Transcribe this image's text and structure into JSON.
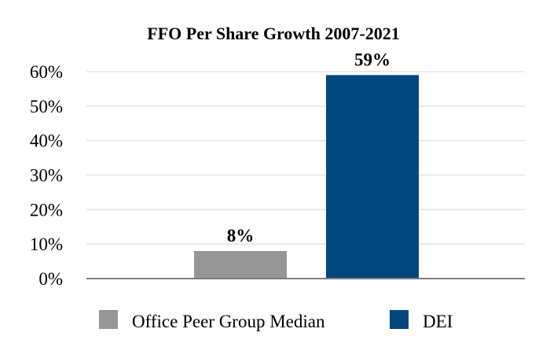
{
  "chart_data": {
    "type": "bar",
    "title": "FFO Per Share Growth 2007-2021",
    "xlabel": "",
    "ylabel": "",
    "categories": [
      "Office Peer Group Median",
      "DEI"
    ],
    "series": [
      {
        "name": "FFO Per Share Growth",
        "values": [
          8,
          59
        ]
      }
    ],
    "data_labels": [
      "8%",
      "59%"
    ],
    "ylim": [
      0,
      60
    ],
    "yticks": [
      0,
      10,
      20,
      30,
      40,
      50,
      60
    ],
    "ytick_labels": [
      "0%",
      "10%",
      "20%",
      "30%",
      "40%",
      "50%",
      "60%"
    ],
    "grid": true,
    "legend": {
      "position": "bottom",
      "entries": [
        "Office Peer Group Median",
        "DEI"
      ]
    },
    "colors": [
      "#969696",
      "#02477D"
    ],
    "grid_color": "#e3e3e3",
    "axis_color": "#7f7f7f"
  }
}
